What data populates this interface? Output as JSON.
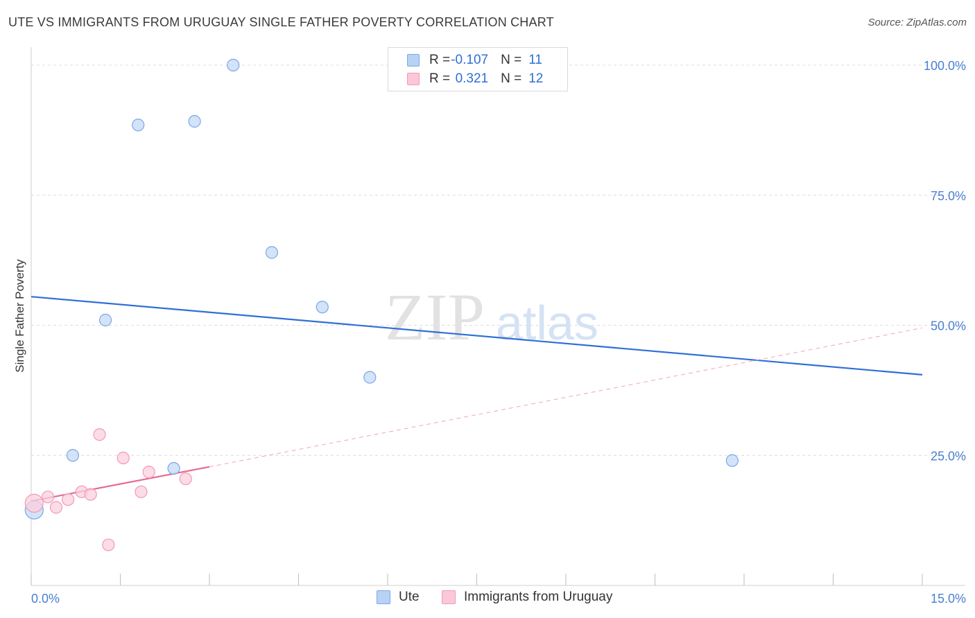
{
  "title": "UTE VS IMMIGRANTS FROM URUGUAY SINGLE FATHER POVERTY CORRELATION CHART",
  "source": "Source: ZipAtlas.com",
  "watermark": {
    "zip": "ZIP",
    "atlas": "atlas"
  },
  "legend": {
    "series": [
      {
        "r_label": "R =",
        "r_value": "-0.107",
        "n_label": "N =",
        "n_value": "11",
        "color_fill": "#b8d2f5",
        "color_stroke": "#7aa7e6"
      },
      {
        "r_label": "R =",
        "r_value": "0.321",
        "n_label": "N =",
        "n_value": "12",
        "color_fill": "#fbc8d7",
        "color_stroke": "#ef9ab3"
      }
    ]
  },
  "bottom_legend": {
    "ute": "Ute",
    "uruguay": "Immigrants from Uruguay"
  },
  "chart_data": {
    "type": "scatter",
    "title": "UTE VS IMMIGRANTS FROM URUGUAY SINGLE FATHER POVERTY CORRELATION CHART",
    "xlabel": "",
    "ylabel": "Single Father Poverty",
    "xlim": [
      0,
      15
    ],
    "ylim": [
      0,
      102
    ],
    "x_tick_labels": [
      "0.0%",
      "15.0%"
    ],
    "y_ticks": [
      25,
      50,
      75,
      100
    ],
    "y_tick_labels": [
      "25.0%",
      "50.0%",
      "75.0%",
      "100.0%"
    ],
    "grid": true,
    "series": [
      {
        "name": "Ute",
        "color": "#7aa7e6",
        "fill": "#c4d9f6",
        "points": [
          {
            "x": 0.05,
            "y": 14.5,
            "big": true
          },
          {
            "x": 0.7,
            "y": 25.0
          },
          {
            "x": 1.25,
            "y": 51.0
          },
          {
            "x": 1.8,
            "y": 88.5
          },
          {
            "x": 2.4,
            "y": 22.5
          },
          {
            "x": 2.75,
            "y": 89.2
          },
          {
            "x": 3.4,
            "y": 100.0
          },
          {
            "x": 4.05,
            "y": 64.0
          },
          {
            "x": 4.9,
            "y": 53.5
          },
          {
            "x": 5.7,
            "y": 40.0
          },
          {
            "x": 11.8,
            "y": 24.0
          }
        ],
        "trend": {
          "x0": 0,
          "y0": 55.5,
          "x1": 15,
          "y1": 40.5,
          "color": "#2f6fd6"
        }
      },
      {
        "name": "Immigrants from Uruguay",
        "color": "#ef9ab3",
        "fill": "#fbd0dd",
        "points": [
          {
            "x": 0.05,
            "y": 15.8,
            "big": true
          },
          {
            "x": 0.28,
            "y": 17.0
          },
          {
            "x": 0.42,
            "y": 15.0
          },
          {
            "x": 0.62,
            "y": 16.5
          },
          {
            "x": 0.85,
            "y": 18.0
          },
          {
            "x": 1.0,
            "y": 17.5
          },
          {
            "x": 1.15,
            "y": 29.0
          },
          {
            "x": 1.3,
            "y": 7.8
          },
          {
            "x": 1.55,
            "y": 24.5
          },
          {
            "x": 1.85,
            "y": 18.0
          },
          {
            "x": 1.98,
            "y": 21.8
          },
          {
            "x": 2.6,
            "y": 20.5
          }
        ],
        "trend": {
          "x0": 0,
          "y0": 16.2,
          "x1": 3.0,
          "y1": 22.8,
          "color": "#e46b93"
        },
        "trend_ext": {
          "x0": 3.0,
          "y0": 22.8,
          "x1": 15,
          "y1": 49.5,
          "color": "#eea5bb"
        }
      }
    ]
  }
}
